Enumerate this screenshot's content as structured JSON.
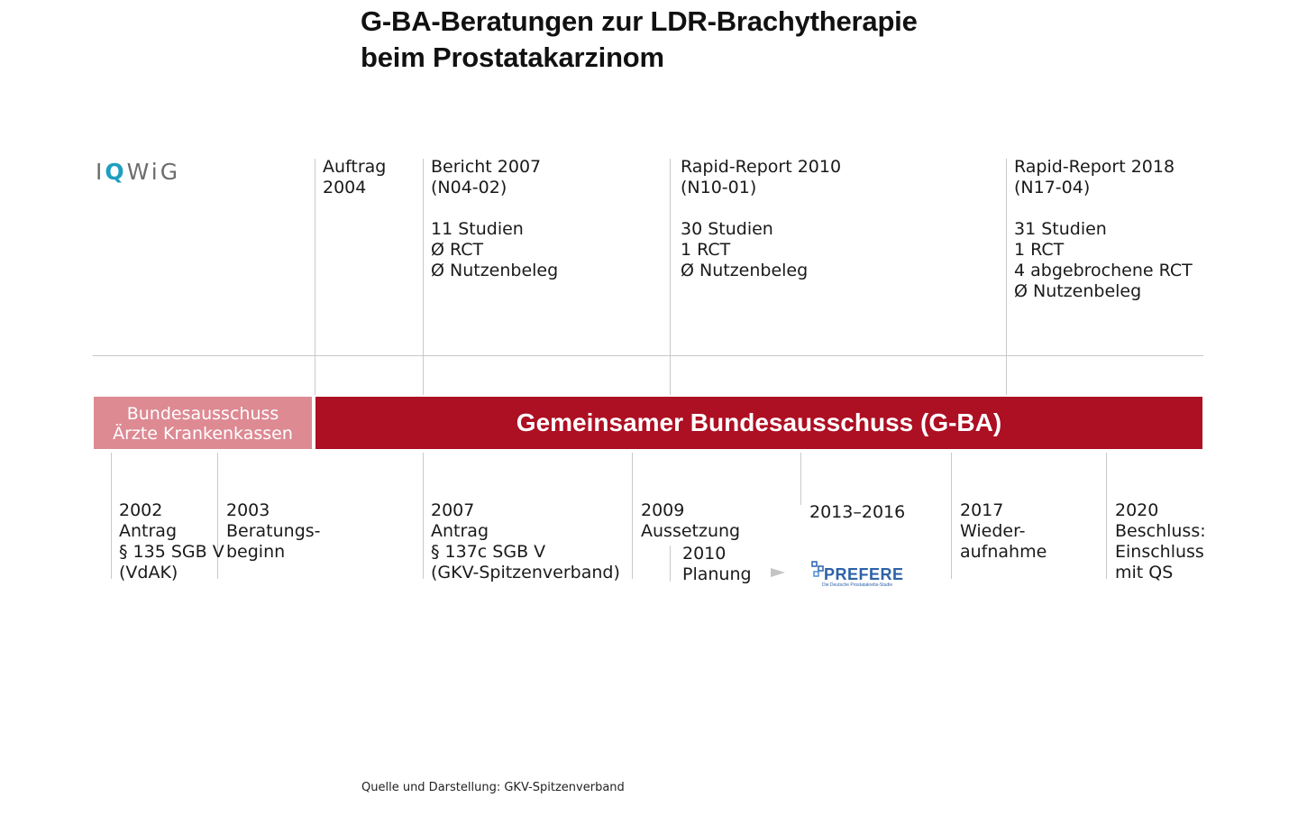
{
  "title": {
    "line1": "G-BA-Beratungen zur LDR-Brachytherapie",
    "line2": "beim Prostatakarzinom"
  },
  "iqwig": {
    "logo_text_pre": "I",
    "logo_text_q": "Q",
    "logo_text_post": "WiG",
    "entries": [
      {
        "lines": [
          "Auftrag",
          "2004"
        ]
      },
      {
        "lines": [
          "Bericht 2007",
          "(N04-02)"
        ],
        "details": [
          "11 Studien",
          "Ø RCT",
          "Ø Nutzenbeleg"
        ]
      },
      {
        "lines": [
          "Rapid-Report 2010",
          "(N10-01)"
        ],
        "details": [
          "30 Studien",
          "1 RCT",
          "Ø Nutzenbeleg"
        ]
      },
      {
        "lines": [
          "Rapid-Report 2018",
          "(N17-04)"
        ],
        "details": [
          "31 Studien",
          "1 RCT",
          "4 abgebrochene RCT",
          "Ø Nutzenbeleg"
        ]
      }
    ]
  },
  "bars": {
    "left": {
      "line1": "Bundesausschuss",
      "line2": "Ärzte Krankenkassen",
      "color": "#dd8a93"
    },
    "main": {
      "label": "Gemeinsamer Bundesausschuss (G-BA)",
      "color": "#ad0f23"
    }
  },
  "gba_events": [
    {
      "lines": [
        "2002",
        "Antrag",
        "§ 135 SGB V",
        "(VdAK)"
      ]
    },
    {
      "lines": [
        "2003",
        "Beratungs-",
        "beginn"
      ]
    },
    {
      "lines": [
        "2007",
        "Antrag",
        "§ 137c SGB V",
        "(GKV-Spitzenverband)"
      ]
    },
    {
      "lines": [
        "2009",
        "Aussetzung"
      ]
    },
    {
      "lines": [
        "2010",
        "Planung"
      ]
    },
    {
      "lines": [
        "2013–2016"
      ]
    },
    {
      "lines": [
        "2017",
        "Wieder-",
        "aufnahme"
      ]
    },
    {
      "lines": [
        "2020",
        "Beschluss:",
        "Einschluss",
        "mit QS"
      ]
    }
  ],
  "prefere_logo": {
    "name": "PREFERE",
    "subtitle": "Die Deutsche Prostatakrebs-Studie"
  },
  "source": "Quelle und Darstellung: GKV-Spitzenverband"
}
